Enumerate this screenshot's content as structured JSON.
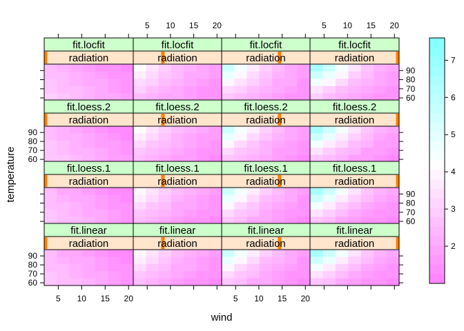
{
  "chart_data": {
    "type": "heatmap",
    "xlabel": "wind",
    "ylabel": "temperature",
    "x_ticks": [
      5,
      10,
      15,
      20
    ],
    "y_ticks": [
      60,
      70,
      80,
      90
    ],
    "xlim": [
      2,
      21
    ],
    "ylim": [
      57,
      97
    ],
    "colorkey": {
      "ticks": [
        2,
        3,
        4,
        5,
        6,
        7
      ],
      "range": [
        1,
        7.6
      ],
      "low_color": "#ff80ff",
      "mid_color": "#ffffff",
      "high_color": "#80ffff"
    },
    "colors": {
      "strip_fit": "#ccffcc",
      "strip_radiation": "#ffe5cc",
      "strip_marker": "#ff7f00"
    },
    "strip_labels": {
      "radiation": "radiation"
    },
    "panel_rows": [
      {
        "fit": "fit.locfit"
      },
      {
        "fit": "fit.loess.2"
      },
      {
        "fit": "fit.loess.1"
      },
      {
        "fit": "fit.linear"
      }
    ],
    "radiation_levels": [
      0.0,
      0.33,
      0.66,
      1.0
    ],
    "panel_values": [
      [
        [
          2.5,
          2.2,
          2.0,
          1.8,
          1.6,
          1.4,
          1.3
        ],
        [
          2.6,
          2.4,
          2.2,
          2.0,
          1.8,
          1.6,
          1.4
        ],
        [
          2.7,
          2.5,
          2.3,
          2.1,
          1.9,
          1.7,
          1.5
        ],
        [
          2.8,
          2.6,
          2.4,
          2.2,
          2.0,
          1.8,
          1.6
        ],
        [
          2.9,
          2.7,
          2.5,
          2.3,
          2.1,
          1.9,
          1.7
        ]
      ],
      [
        [
          4.2,
          3.6,
          3.0,
          2.6,
          2.3,
          2.0,
          1.8
        ],
        [
          3.8,
          3.3,
          2.8,
          2.4,
          2.1,
          1.9,
          1.7
        ],
        [
          3.3,
          2.9,
          2.5,
          2.2,
          2.0,
          1.8,
          1.6
        ],
        [
          2.9,
          2.6,
          2.3,
          2.0,
          1.8,
          1.6,
          1.5
        ],
        [
          2.6,
          2.3,
          2.1,
          1.9,
          1.7,
          1.5,
          1.4
        ]
      ],
      [
        [
          5.6,
          4.6,
          3.8,
          3.0,
          2.5,
          2.1,
          1.8
        ],
        [
          4.8,
          4.0,
          3.3,
          2.7,
          2.3,
          2.0,
          1.7
        ],
        [
          4.0,
          3.4,
          2.9,
          2.4,
          2.1,
          1.9,
          1.6
        ],
        [
          3.3,
          2.9,
          2.5,
          2.2,
          1.9,
          1.7,
          1.5
        ],
        [
          2.8,
          2.5,
          2.2,
          2.0,
          1.8,
          1.6,
          1.4
        ]
      ],
      [
        [
          6.6,
          5.6,
          4.6,
          3.6,
          2.8,
          2.3,
          2.0
        ],
        [
          5.6,
          4.8,
          3.9,
          3.1,
          2.5,
          2.1,
          1.8
        ],
        [
          4.6,
          3.9,
          3.2,
          2.6,
          2.2,
          1.9,
          1.7
        ],
        [
          3.6,
          3.1,
          2.6,
          2.2,
          1.9,
          1.7,
          1.5
        ],
        [
          2.9,
          2.5,
          2.2,
          1.9,
          1.7,
          1.5,
          1.4
        ]
      ]
    ]
  }
}
